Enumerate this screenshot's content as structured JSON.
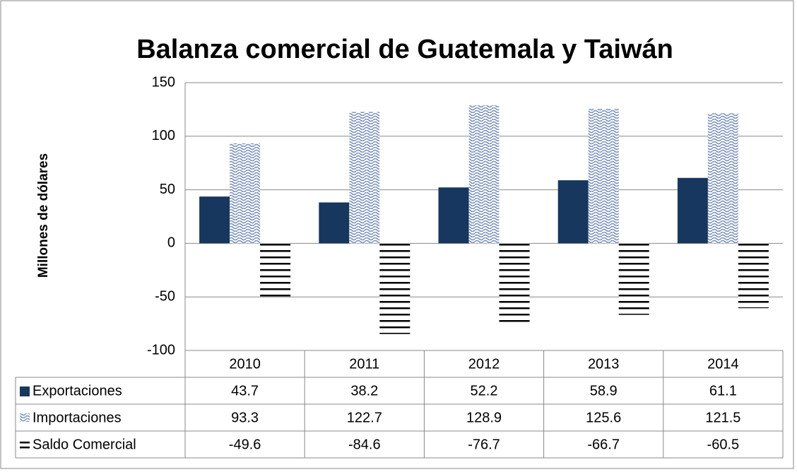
{
  "chart_data": {
    "type": "bar",
    "title": "Balanza comercial de Guatemala y Taiwán",
    "y_axis_label": "Millones de dólares",
    "categories": [
      "2010",
      "2011",
      "2012",
      "2013",
      "2014"
    ],
    "series": [
      {
        "name": "Exportaciones",
        "color": "#17375e",
        "pattern": "solid",
        "values": [
          43.7,
          38.2,
          52.2,
          58.9,
          61.1
        ]
      },
      {
        "name": "Importaciones",
        "color": "#7f95bb",
        "pattern": "wave",
        "values": [
          93.3,
          122.7,
          128.9,
          125.6,
          121.5
        ]
      },
      {
        "name": "Saldo Comercial",
        "color": "#000000",
        "pattern": "horizontal",
        "values": [
          -49.6,
          -84.6,
          -76.7,
          -66.7,
          -60.5
        ]
      }
    ],
    "ylim": [
      -100,
      150
    ],
    "yticks": [
      -100,
      -50,
      0,
      50,
      100,
      150
    ],
    "grid": true,
    "data_table": true
  }
}
